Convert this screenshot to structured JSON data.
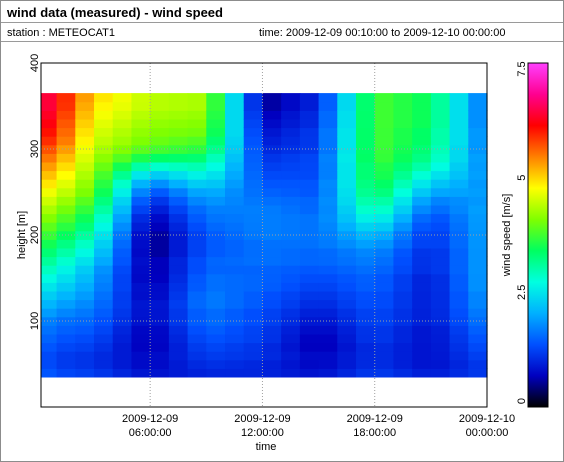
{
  "header": {
    "title": "wind data (measured) - wind speed",
    "station": "station : METEOCAT1",
    "time_range": "time: 2009-12-09 00:10:00 to 2009-12-10 00:00:00"
  },
  "chart_data": {
    "type": "heatmap",
    "title": "wind data (measured) - wind speed",
    "xlabel": "time",
    "ylabel": "height [m]",
    "colorbar_label": "wind speed [m/s]",
    "x_range": [
      "2009-12-09 00:10:00",
      "2009-12-10 00:00:00"
    ],
    "x_ticks": [
      {
        "value": "2009-12-09 06:00:00",
        "line1": "2009-12-09",
        "line2": "06:00:00"
      },
      {
        "value": "2009-12-09 12:00:00",
        "line1": "2009-12-09",
        "line2": "12:00:00"
      },
      {
        "value": "2009-12-09 18:00:00",
        "line1": "2009-12-09",
        "line2": "18:00:00"
      },
      {
        "value": "2009-12-10 00:00:00",
        "line1": "2009-12-10",
        "line2": "00:00:00"
      }
    ],
    "y_range": [
      0,
      400
    ],
    "y_ticks": [
      100,
      200,
      300,
      400
    ],
    "y_tick_labels": [
      "100",
      "200",
      "300",
      "400"
    ],
    "colorbar_range": [
      0,
      7.5
    ],
    "colorbar_ticks": [
      0,
      2.5,
      5,
      7.5
    ],
    "colorbar_tick_labels": [
      "0",
      "2.5",
      "5",
      "7.5"
    ],
    "colormap": [
      "#000000",
      "#0000c0",
      "#0050ff",
      "#00b0ff",
      "#00ffe0",
      "#00ff60",
      "#80ff00",
      "#ffff00",
      "#ff8000",
      "#ff0000",
      "#ff0090",
      "#ff40ff"
    ],
    "grid": true,
    "heights_m": [
      40,
      50,
      60,
      70,
      80,
      90,
      100,
      110,
      120,
      130,
      140,
      150,
      160,
      170,
      180,
      190,
      200,
      210,
      220,
      230,
      240,
      250,
      260,
      270,
      280,
      290,
      300,
      310,
      320,
      330,
      340,
      350,
      360
    ],
    "times_h": [
      0.17,
      1.0,
      2.0,
      3.0,
      4.0,
      5.0,
      6.0,
      7.0,
      8.0,
      9.0,
      10.0,
      11.0,
      12.0,
      13.0,
      14.0,
      15.0,
      16.0,
      17.0,
      18.0,
      19.0,
      20.0,
      21.0,
      22.0,
      23.0,
      24.0
    ],
    "profiles": [
      {
        "t": 0.17,
        "ws": [
          1.5,
          1.4,
          1.4,
          1.5,
          1.6,
          1.7,
          1.8,
          2.0,
          2.2,
          2.4,
          2.6,
          2.8,
          3.0,
          3.2,
          3.4,
          3.6,
          3.8,
          4.0,
          4.2,
          4.4,
          4.6,
          4.8,
          5.0,
          5.2,
          5.4,
          5.6,
          5.8,
          6.0,
          6.2,
          6.4,
          6.5,
          6.6,
          6.6
        ]
      },
      {
        "t": 1.0,
        "ws": [
          1.3,
          1.2,
          1.2,
          1.3,
          1.4,
          1.5,
          1.6,
          1.8,
          2.0,
          2.2,
          2.4,
          2.6,
          2.8,
          3.0,
          3.2,
          3.4,
          3.6,
          3.8,
          4.0,
          4.2,
          4.4,
          4.6,
          4.8,
          5.0,
          5.2,
          5.4,
          5.6,
          5.8,
          5.9,
          6.0,
          6.1,
          6.2,
          6.2
        ]
      },
      {
        "t": 3.0,
        "ws": [
          1.2,
          1.1,
          1.1,
          1.2,
          1.3,
          1.4,
          1.5,
          1.6,
          1.7,
          1.8,
          1.9,
          2.0,
          2.1,
          2.3,
          2.5,
          2.7,
          2.9,
          3.1,
          3.3,
          3.5,
          3.7,
          3.9,
          4.0,
          4.1,
          4.2,
          4.3,
          4.4,
          4.5,
          4.6,
          4.7,
          4.8,
          4.9,
          5.0
        ]
      },
      {
        "t": 6.0,
        "ws": [
          0.8,
          0.7,
          0.7,
          0.6,
          0.6,
          0.6,
          0.7,
          0.7,
          0.7,
          0.6,
          0.6,
          0.5,
          0.5,
          0.5,
          0.4,
          0.4,
          0.4,
          0.5,
          0.6,
          0.8,
          1.0,
          1.3,
          1.7,
          2.2,
          2.8,
          3.4,
          3.8,
          4.0,
          4.1,
          4.2,
          4.3,
          4.4,
          4.4
        ]
      },
      {
        "t": 9.0,
        "ws": [
          1.0,
          1.1,
          1.2,
          1.3,
          1.4,
          1.5,
          1.6,
          1.6,
          1.7,
          1.7,
          1.6,
          1.6,
          1.5,
          1.5,
          1.4,
          1.4,
          1.4,
          1.5,
          1.6,
          1.7,
          1.9,
          2.1,
          2.4,
          2.7,
          3.0,
          3.3,
          3.6,
          3.8,
          4.0,
          4.1,
          4.2,
          4.3,
          4.3
        ]
      },
      {
        "t": 12.0,
        "ws": [
          1.0,
          1.0,
          1.1,
          1.1,
          1.2,
          1.2,
          1.3,
          1.3,
          1.4,
          1.4,
          1.5,
          1.5,
          1.5,
          1.6,
          1.6,
          1.6,
          1.7,
          1.7,
          1.7,
          1.7,
          1.6,
          1.5,
          1.4,
          1.3,
          1.2,
          1.1,
          1.0,
          0.9,
          0.8,
          0.7,
          0.6,
          0.5,
          0.5
        ]
      },
      {
        "t": 15.0,
        "ws": [
          0.8,
          0.7,
          0.7,
          0.6,
          0.6,
          0.7,
          0.8,
          0.9,
          1.0,
          1.1,
          1.2,
          1.3,
          1.4,
          1.5,
          1.5,
          1.6,
          1.6,
          1.6,
          1.6,
          1.5,
          1.5,
          1.4,
          1.4,
          1.3,
          1.3,
          1.3,
          1.2,
          1.2,
          1.2,
          1.1,
          1.1,
          1.0,
          1.0
        ]
      },
      {
        "t": 18.0,
        "ws": [
          1.2,
          1.1,
          1.1,
          1.1,
          1.2,
          1.2,
          1.3,
          1.3,
          1.4,
          1.4,
          1.5,
          1.5,
          1.6,
          1.7,
          1.8,
          2.0,
          2.2,
          2.5,
          2.8,
          3.1,
          3.3,
          3.5,
          3.6,
          3.7,
          3.7,
          3.8,
          3.8,
          3.8,
          3.8,
          3.8,
          3.8,
          3.8,
          3.8
        ]
      },
      {
        "t": 21.0,
        "ws": [
          0.9,
          0.8,
          0.8,
          0.8,
          0.8,
          0.8,
          0.9,
          0.9,
          0.9,
          0.9,
          0.9,
          0.9,
          1.0,
          1.0,
          1.0,
          1.1,
          1.1,
          1.2,
          1.3,
          1.5,
          1.7,
          2.0,
          2.3,
          2.6,
          2.9,
          3.1,
          3.2,
          3.3,
          3.3,
          3.4,
          3.4,
          3.4,
          3.4
        ]
      },
      {
        "t": 24.0,
        "ws": [
          1.2,
          1.2,
          1.3,
          1.4,
          1.5,
          1.6,
          1.7,
          1.8,
          1.9,
          1.9,
          2.0,
          2.0,
          2.0,
          2.0,
          2.0,
          2.0,
          2.0,
          2.0,
          2.0,
          2.0,
          1.9,
          1.9,
          1.8,
          1.8,
          1.7,
          1.7,
          1.6,
          1.6,
          1.6,
          1.5,
          1.5,
          1.5,
          1.5
        ]
      }
    ]
  }
}
